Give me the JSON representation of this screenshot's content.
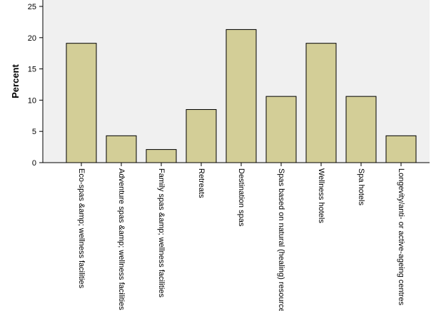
{
  "chart_data": {
    "type": "bar",
    "title": "",
    "xlabel": "",
    "ylabel": "Percent",
    "ylim": [
      0,
      25
    ],
    "yticks": [
      0,
      5,
      10,
      15,
      20,
      25
    ],
    "categories": [
      "Eco-spas &amp; wellness facilities",
      "Adventure spas &amp; wellness facilities",
      "Family spas &amp; wellness facilities",
      "Retreats",
      "Destination spas",
      "Spas based on natural (healing) resource",
      "Wellness hotels",
      "Spa hotels",
      "Longevity/anti- or active-ageing centres"
    ],
    "values": [
      19.1,
      4.3,
      2.1,
      8.5,
      21.3,
      10.6,
      19.1,
      10.6,
      4.3
    ],
    "grid": false,
    "legend": "none",
    "colors": {
      "plot_background": "#f0f0f0",
      "bar_fill": "#d3ce97",
      "bar_stroke": "#000000",
      "axis": "#000000"
    }
  }
}
